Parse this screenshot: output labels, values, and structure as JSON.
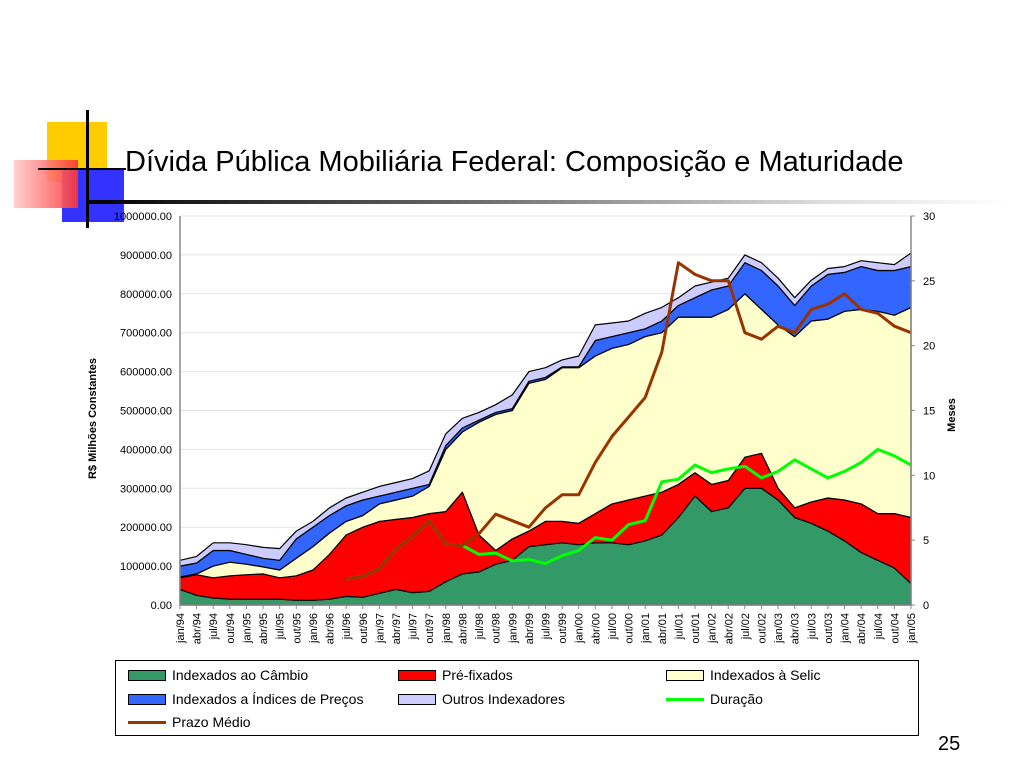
{
  "slide": {
    "title": "Dívida Pública Mobiliária Federal: Composição e Maturidade",
    "page_number": "25"
  },
  "chart_data": {
    "type": "area",
    "stacked": true,
    "ylabel": "R$ Milhões Constantes",
    "y2label": "Meses",
    "ylim": [
      0,
      1000000
    ],
    "y2lim": [
      0,
      30
    ],
    "yticks": [
      "0.00",
      "100000.00",
      "200000.00",
      "300000.00",
      "400000.00",
      "500000.00",
      "600000.00",
      "700000.00",
      "800000.00",
      "900000.00",
      "1000000.00"
    ],
    "y2ticks": [
      "0",
      "5",
      "10",
      "15",
      "20",
      "25",
      "30"
    ],
    "grid": true,
    "legend": "bottom",
    "categories": [
      "jan/94",
      "abr/94",
      "jul/94",
      "out/94",
      "jan/95",
      "abr/95",
      "jul/95",
      "out/95",
      "jan/96",
      "abr/96",
      "jul/96",
      "out/96",
      "jan/97",
      "abr/97",
      "jul/97",
      "out/97",
      "jan/98",
      "abr/98",
      "jul/98",
      "out/98",
      "jan/99",
      "abr/99",
      "jul/99",
      "out/99",
      "jan/00",
      "abr/00",
      "jul/00",
      "out/00",
      "jan/01",
      "abr/01",
      "jul/01",
      "out/01",
      "jan/02",
      "abr/02",
      "jul/02",
      "out/02",
      "jan/03",
      "abr/03",
      "jul/03",
      "out/03",
      "jan/04",
      "abr/04",
      "jul/04",
      "out/04",
      "jan/05"
    ],
    "series": [
      {
        "name": "Indexados ao Câmbio",
        "kind": "area",
        "color": "#339966",
        "values": [
          40000,
          25000,
          18000,
          15000,
          15000,
          15000,
          15000,
          12000,
          12000,
          15000,
          22000,
          20000,
          30000,
          40000,
          32000,
          35000,
          60000,
          80000,
          85000,
          105000,
          115000,
          150000,
          155000,
          160000,
          155000,
          160000,
          160000,
          155000,
          165000,
          180000,
          225000,
          280000,
          240000,
          250000,
          300000,
          300000,
          270000,
          225000,
          210000,
          190000,
          165000,
          135000,
          115000,
          95000,
          55000
        ]
      },
      {
        "name": "Pré-fixados",
        "kind": "area",
        "color": "#ff0000",
        "values": [
          30000,
          53000,
          52000,
          60000,
          63000,
          65000,
          55000,
          63000,
          78000,
          115000,
          158000,
          180000,
          185000,
          180000,
          193000,
          200000,
          180000,
          210000,
          95000,
          35000,
          55000,
          40000,
          60000,
          55000,
          55000,
          75000,
          100000,
          115000,
          115000,
          110000,
          85000,
          60000,
          70000,
          70000,
          80000,
          90000,
          30000,
          25000,
          55000,
          85000,
          105000,
          125000,
          120000,
          140000,
          170000
        ]
      },
      {
        "name": "Indexados à Selic",
        "kind": "area",
        "color": "#ffffcc",
        "values": [
          2000,
          2000,
          30000,
          35000,
          27000,
          18000,
          20000,
          45000,
          60000,
          55000,
          35000,
          30000,
          45000,
          50000,
          55000,
          70000,
          160000,
          155000,
          290000,
          350000,
          330000,
          380000,
          365000,
          395000,
          400000,
          405000,
          400000,
          400000,
          410000,
          410000,
          430000,
          400000,
          430000,
          440000,
          420000,
          370000,
          420000,
          440000,
          465000,
          460000,
          485000,
          500000,
          520000,
          510000,
          540000
        ]
      },
      {
        "name": "Indexados a Índices de Preços",
        "kind": "area",
        "color": "#3366ff",
        "values": [
          28000,
          28000,
          40000,
          30000,
          25000,
          22000,
          25000,
          50000,
          50000,
          45000,
          40000,
          40000,
          20000,
          20000,
          20000,
          5000,
          10000,
          10000,
          5000,
          5000,
          5000,
          5000,
          5000,
          2000,
          2000,
          40000,
          30000,
          30000,
          20000,
          30000,
          30000,
          50000,
          70000,
          60000,
          80000,
          100000,
          100000,
          80000,
          90000,
          115000,
          100000,
          110000,
          105000,
          115000,
          105000
        ]
      },
      {
        "name": "Outros Indexadores",
        "kind": "area",
        "color": "#ccccff",
        "values": [
          15000,
          17000,
          20000,
          20000,
          25000,
          28000,
          30000,
          20000,
          15000,
          20000,
          20000,
          20000,
          25000,
          25000,
          25000,
          35000,
          30000,
          25000,
          20000,
          20000,
          35000,
          25000,
          25000,
          18000,
          28000,
          40000,
          35000,
          30000,
          40000,
          35000,
          20000,
          30000,
          20000,
          20000,
          20000,
          20000,
          20000,
          20000,
          15000,
          15000,
          15000,
          15000,
          20000,
          15000,
          35000
        ]
      },
      {
        "name": "Duração",
        "kind": "line",
        "axis": "right",
        "color": "#00ff00",
        "values": [
          null,
          null,
          null,
          null,
          null,
          null,
          null,
          null,
          null,
          null,
          2.0,
          2.2,
          2.8,
          4.3,
          5.3,
          6.5,
          4.7,
          4.6,
          3.9,
          4.0,
          3.4,
          3.5,
          3.2,
          3.8,
          4.2,
          5.2,
          5.0,
          6.2,
          6.5,
          9.5,
          9.7,
          10.8,
          10.2,
          10.5,
          10.7,
          9.8,
          10.3,
          11.2,
          10.5,
          9.8,
          10.3,
          11.0,
          12.0,
          11.5,
          10.8
        ]
      },
      {
        "name": "Prazo Médio",
        "kind": "line",
        "axis": "right",
        "color": "#993300",
        "values": [
          null,
          null,
          null,
          null,
          null,
          null,
          null,
          null,
          null,
          null,
          2.0,
          2.2,
          2.8,
          4.3,
          5.3,
          6.5,
          4.7,
          4.6,
          5.5,
          7.0,
          6.5,
          6.0,
          7.5,
          8.5,
          8.5,
          11.0,
          13.0,
          14.5,
          16.0,
          19.5,
          26.4,
          25.5,
          25.0,
          25.0,
          21.0,
          20.5,
          21.5,
          21.0,
          22.8,
          23.2,
          24.0,
          22.8,
          22.5,
          21.5,
          21.0
        ]
      }
    ]
  }
}
